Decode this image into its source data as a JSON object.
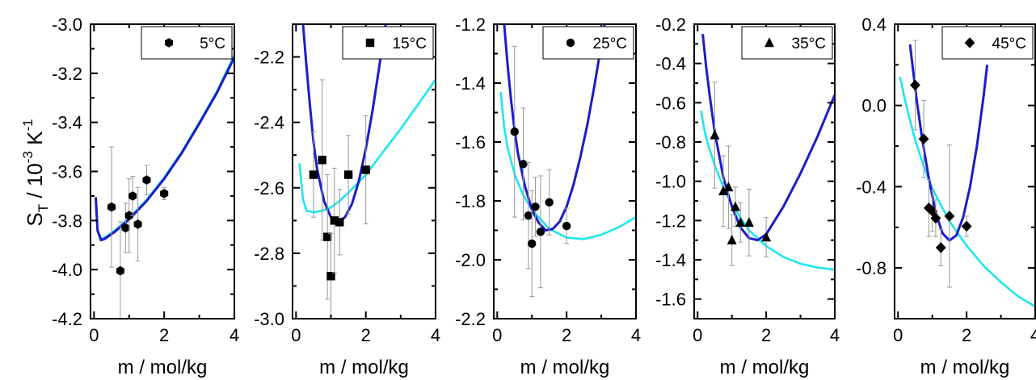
{
  "figure": {
    "ylabel": {
      "base": "S",
      "sub": "T",
      "mid": " / 10",
      "sup": "-3",
      "unit": " K",
      "unit_sup": "-1"
    }
  },
  "colors": {
    "fit_blue": "#1c1cc8",
    "fit_cyan": "#1ee6f0",
    "errorbar": "#999999",
    "marker": "#000000"
  },
  "chart_data": [
    {
      "type": "scatter",
      "legend": "5°C",
      "legend_placement": "top-right",
      "marker": "hexagon",
      "xlabel": "m / mol/kg",
      "xlim": [
        -0.1,
        4
      ],
      "ylim": [
        -4.2,
        -3.0
      ],
      "xticks": [
        "0",
        "2",
        "4"
      ],
      "yticks": [
        "-3.0",
        "-3.2",
        "-3.4",
        "-3.6",
        "-3.8",
        "-4.0",
        "-4.2"
      ],
      "points": [
        {
          "x": 0.5,
          "y": -3.745,
          "err": 0.245
        },
        {
          "x": 0.75,
          "y": -4.005,
          "err": 0.2
        },
        {
          "x": 0.9,
          "y": -3.83,
          "err": 0.1
        },
        {
          "x": 1.0,
          "y": -3.78,
          "err": 0.15
        },
        {
          "x": 1.1,
          "y": -3.7,
          "err": 0.08
        },
        {
          "x": 1.25,
          "y": -3.815,
          "err": 0.15
        },
        {
          "x": 1.5,
          "y": -3.635,
          "err": 0.06
        },
        {
          "x": 2.0,
          "y": -3.69,
          "err": 0.025
        }
      ],
      "fits": [
        {
          "color": "cyan",
          "x": [
            0.05,
            0.1,
            0.2,
            0.3,
            0.4,
            0.6,
            0.8,
            1.0,
            1.5,
            2.0,
            2.5,
            3.0,
            3.5,
            4.0
          ],
          "y": [
            -3.71,
            -3.84,
            -3.875,
            -3.87,
            -3.86,
            -3.84,
            -3.815,
            -3.79,
            -3.715,
            -3.625,
            -3.52,
            -3.4,
            -3.275,
            -3.125
          ]
        },
        {
          "color": "blue",
          "x": [
            0.05,
            0.1,
            0.2,
            0.3,
            0.4,
            0.6,
            0.8,
            1.0,
            1.5,
            2.0,
            2.5,
            3.0,
            3.5,
            4.0
          ],
          "y": [
            -3.705,
            -3.84,
            -3.88,
            -3.875,
            -3.865,
            -3.845,
            -3.82,
            -3.795,
            -3.72,
            -3.63,
            -3.525,
            -3.405,
            -3.28,
            -3.135
          ]
        }
      ]
    },
    {
      "type": "scatter",
      "legend": "15°C",
      "legend_placement": "top-right",
      "marker": "square",
      "xlabel": "m / mol/kg",
      "xlim": [
        -0.1,
        4
      ],
      "ylim": [
        -3.0,
        -2.1
      ],
      "xticks": [
        "0",
        "2",
        "4"
      ],
      "yticks": [
        "-2.2",
        "-2.4",
        "-2.6",
        "-2.8",
        "-3.0"
      ],
      "points": [
        {
          "x": 0.5,
          "y": -2.56,
          "err": 0.13
        },
        {
          "x": 0.75,
          "y": -2.515,
          "err": 0.245
        },
        {
          "x": 0.9,
          "y": -2.75,
          "err": 0.19
        },
        {
          "x": 1.0,
          "y": -2.87,
          "err": 0.13
        },
        {
          "x": 1.1,
          "y": -2.7,
          "err": 0.16
        },
        {
          "x": 1.25,
          "y": -2.705,
          "err": 0.1
        },
        {
          "x": 1.5,
          "y": -2.56,
          "err": 0.12
        },
        {
          "x": 2.0,
          "y": -2.545,
          "err": 0.165
        }
      ],
      "fits": [
        {
          "color": "cyan",
          "x": [
            0.1,
            0.2,
            0.3,
            0.5,
            0.75,
            1.0,
            1.25,
            1.5,
            2.0,
            2.5,
            3.0,
            3.5,
            4.0
          ],
          "y": [
            -2.525,
            -2.635,
            -2.67,
            -2.675,
            -2.67,
            -2.66,
            -2.64,
            -2.615,
            -2.56,
            -2.49,
            -2.42,
            -2.345,
            -2.27
          ]
        },
        {
          "color": "blue",
          "x": [
            0.2,
            0.3,
            0.4,
            0.5,
            0.6,
            0.8,
            1.0,
            1.2,
            1.4,
            1.6,
            1.8,
            2.0,
            2.2,
            2.4,
            2.6
          ],
          "y": [
            -2.1,
            -2.23,
            -2.35,
            -2.46,
            -2.54,
            -2.64,
            -2.69,
            -2.705,
            -2.69,
            -2.65,
            -2.58,
            -2.48,
            -2.36,
            -2.22,
            -2.08
          ]
        }
      ]
    },
    {
      "type": "scatter",
      "legend": "25°C",
      "legend_placement": "top-right",
      "marker": "circle",
      "xlabel": "m / mol/kg",
      "xlim": [
        -0.1,
        4
      ],
      "ylim": [
        -2.2,
        -1.2
      ],
      "xticks": [
        "0",
        "2",
        "4"
      ],
      "yticks": [
        "-1.2",
        "-1.4",
        "-1.6",
        "-1.8",
        "-2.0",
        "-2.2"
      ],
      "points": [
        {
          "x": 0.5,
          "y": -1.565,
          "err": 0.29
        },
        {
          "x": 0.75,
          "y": -1.675,
          "err": 0.19
        },
        {
          "x": 0.9,
          "y": -1.85,
          "err": 0.18
        },
        {
          "x": 1.0,
          "y": -1.945,
          "err": 0.18
        },
        {
          "x": 1.1,
          "y": -1.82,
          "err": 0.1
        },
        {
          "x": 1.25,
          "y": -1.905,
          "err": 0.19
        },
        {
          "x": 1.5,
          "y": -1.805,
          "err": 0.11
        },
        {
          "x": 2.0,
          "y": -1.885,
          "err": 0.06
        }
      ],
      "fits": [
        {
          "color": "cyan",
          "x": [
            0.1,
            0.2,
            0.3,
            0.5,
            0.75,
            1.0,
            1.5,
            2.0,
            2.5,
            3.0,
            3.5,
            4.0
          ],
          "y": [
            -1.43,
            -1.55,
            -1.62,
            -1.71,
            -1.78,
            -1.83,
            -1.895,
            -1.925,
            -1.93,
            -1.915,
            -1.89,
            -1.855
          ]
        },
        {
          "color": "blue",
          "x": [
            0.2,
            0.3,
            0.4,
            0.5,
            0.6,
            0.8,
            1.0,
            1.2,
            1.4,
            1.6,
            1.8,
            2.0,
            2.2,
            2.4,
            2.6,
            2.8,
            3.0,
            3.2
          ],
          "y": [
            -1.2,
            -1.34,
            -1.46,
            -1.56,
            -1.64,
            -1.75,
            -1.83,
            -1.875,
            -1.9,
            -1.895,
            -1.87,
            -1.82,
            -1.745,
            -1.65,
            -1.54,
            -1.41,
            -1.27,
            -1.12
          ]
        }
      ]
    },
    {
      "type": "scatter",
      "legend": "35°C",
      "legend_placement": "top-right",
      "marker": "triangle",
      "xlabel": "m / mol/kg",
      "xlim": [
        -0.1,
        4
      ],
      "ylim": [
        -1.7,
        -0.2
      ],
      "xticks": [
        "0",
        "2",
        "4"
      ],
      "yticks": [
        "-0.2",
        "-0.4",
        "-0.6",
        "-0.8",
        "-1.0",
        "-1.2",
        "-1.4",
        "-1.6"
      ],
      "points": [
        {
          "x": 0.5,
          "y": -0.765,
          "err": 0.27
        },
        {
          "x": 0.75,
          "y": -1.05,
          "err": 0.18
        },
        {
          "x": 0.9,
          "y": -1.03,
          "err": 0.21
        },
        {
          "x": 1.0,
          "y": -1.3,
          "err": 0.13
        },
        {
          "x": 1.1,
          "y": -1.13,
          "err": 0.1
        },
        {
          "x": 1.25,
          "y": -1.21,
          "err": 0.1
        },
        {
          "x": 1.5,
          "y": -1.21,
          "err": 0.17
        },
        {
          "x": 2.0,
          "y": -1.285,
          "err": 0.1
        }
      ],
      "fits": [
        {
          "color": "cyan",
          "x": [
            0.1,
            0.2,
            0.3,
            0.5,
            0.75,
            1.0,
            1.5,
            2.0,
            2.5,
            3.0,
            3.5,
            4.0
          ],
          "y": [
            -0.64,
            -0.74,
            -0.81,
            -0.92,
            -1.03,
            -1.12,
            -1.25,
            -1.33,
            -1.385,
            -1.42,
            -1.44,
            -1.45
          ]
        },
        {
          "color": "blue",
          "x": [
            0.15,
            0.25,
            0.35,
            0.5,
            0.75,
            1.0,
            1.25,
            1.5,
            1.75,
            2.0,
            2.5,
            3.0,
            3.5,
            4.0
          ],
          "y": [
            -0.25,
            -0.42,
            -0.56,
            -0.75,
            -0.98,
            -1.13,
            -1.235,
            -1.29,
            -1.3,
            -1.27,
            -1.13,
            -0.96,
            -0.77,
            -0.56
          ]
        }
      ]
    },
    {
      "type": "scatter",
      "legend": "45°C",
      "legend_placement": "top-right",
      "marker": "diamond",
      "xlabel": "m / mol/kg",
      "xlim": [
        -0.1,
        4
      ],
      "ylim": [
        -1.05,
        0.4
      ],
      "xticks": [
        "0",
        "2",
        "4"
      ],
      "yticks": [
        "0.4",
        "0.0",
        "-0.4",
        "-0.8"
      ],
      "points": [
        {
          "x": 0.5,
          "y": 0.1,
          "err": 0.22
        },
        {
          "x": 0.75,
          "y": -0.165,
          "err": 0.19
        },
        {
          "x": 0.9,
          "y": -0.505,
          "err": 0.14
        },
        {
          "x": 1.0,
          "y": -0.52,
          "err": 0.1
        },
        {
          "x": 1.1,
          "y": -0.555,
          "err": 0.09
        },
        {
          "x": 1.25,
          "y": -0.7,
          "err": 0.09
        },
        {
          "x": 1.5,
          "y": -0.545,
          "err": 0.35
        },
        {
          "x": 2.0,
          "y": -0.595,
          "err": 0.05
        }
      ],
      "fits": [
        {
          "color": "cyan",
          "x": [
            0.05,
            0.1,
            0.2,
            0.3,
            0.5,
            0.75,
            1.0,
            1.5,
            2.0,
            2.5,
            3.0,
            3.5,
            4.0
          ],
          "y": [
            0.14,
            0.11,
            0.03,
            -0.04,
            -0.17,
            -0.3,
            -0.41,
            -0.57,
            -0.69,
            -0.79,
            -0.87,
            -0.94,
            -0.99
          ]
        },
        {
          "color": "blue",
          "x": [
            0.35,
            0.45,
            0.55,
            0.7,
            0.9,
            1.1,
            1.3,
            1.5,
            1.7,
            1.9,
            2.1,
            2.3,
            2.5,
            2.6
          ],
          "y": [
            0.3,
            0.16,
            0.02,
            -0.16,
            -0.36,
            -0.53,
            -0.63,
            -0.665,
            -0.64,
            -0.55,
            -0.4,
            -0.2,
            0.05,
            0.2
          ]
        }
      ]
    }
  ]
}
